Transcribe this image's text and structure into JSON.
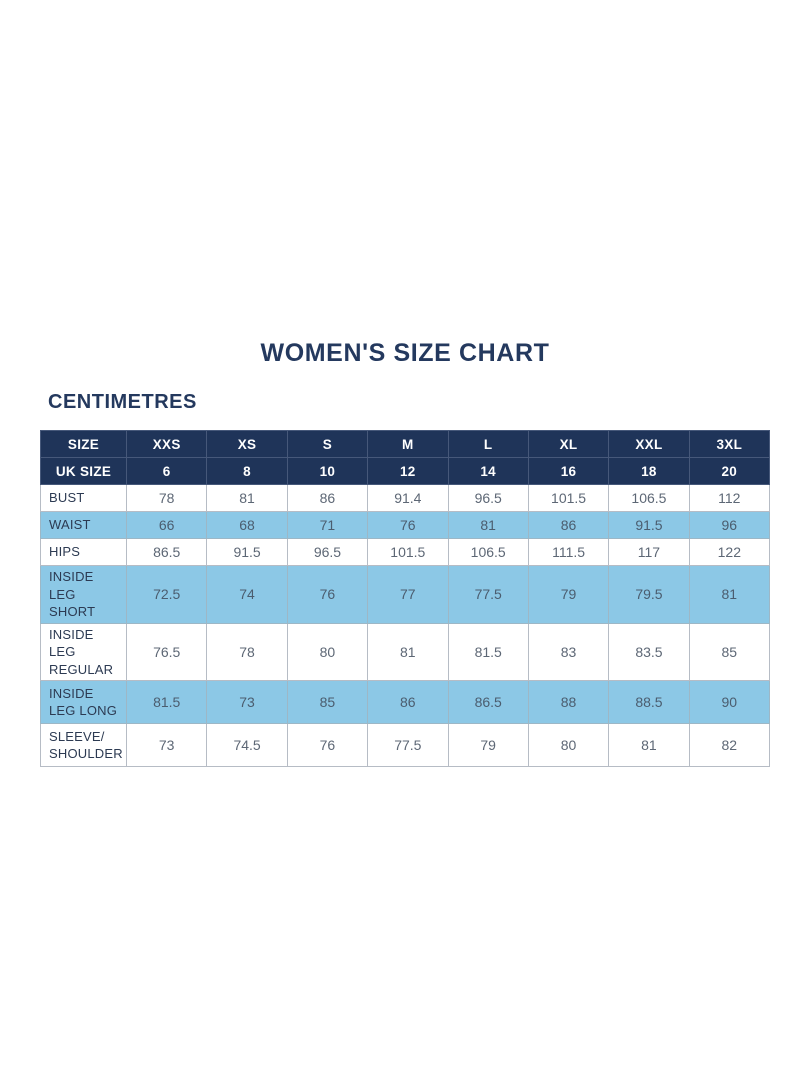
{
  "page": {
    "title": "WOMEN'S SIZE CHART",
    "unit_label": "CENTIMETRES"
  },
  "colors": {
    "navy_header": "#1f3459",
    "shaded_row_blue": "#8cc8e6",
    "title_text": "#24395e",
    "body_border": "#b6bcc5",
    "value_text": "#5d6775",
    "background": "#ffffff"
  },
  "chart_data": {
    "type": "table",
    "title": "WOMEN'S SIZE CHART",
    "unit": "CENTIMETRES",
    "columns": [
      "SIZE",
      "XXS",
      "XS",
      "S",
      "M",
      "L",
      "XL",
      "XXL",
      "3XL"
    ],
    "uk_size_row": {
      "label": "UK SIZE",
      "values": [
        "6",
        "8",
        "10",
        "12",
        "14",
        "16",
        "18",
        "20"
      ]
    },
    "rows": [
      {
        "label": "BUST",
        "values": [
          "78",
          "81",
          "86",
          "91.4",
          "96.5",
          "101.5",
          "106.5",
          "112"
        ],
        "shaded": false,
        "tall": false
      },
      {
        "label": "WAIST",
        "values": [
          "66",
          "68",
          "71",
          "76",
          "81",
          "86",
          "91.5",
          "96"
        ],
        "shaded": true,
        "tall": false
      },
      {
        "label": "HIPS",
        "values": [
          "86.5",
          "91.5",
          "96.5",
          "101.5",
          "106.5",
          "111.5",
          "117",
          "122"
        ],
        "shaded": false,
        "tall": false
      },
      {
        "label": "INSIDE LEG SHORT",
        "values": [
          "72.5",
          "74",
          "76",
          "77",
          "77.5",
          "79",
          "79.5",
          "81"
        ],
        "shaded": true,
        "tall": true
      },
      {
        "label": "INSIDE LEG REGULAR",
        "values": [
          "76.5",
          "78",
          "80",
          "81",
          "81.5",
          "83",
          "83.5",
          "85"
        ],
        "shaded": false,
        "tall": true
      },
      {
        "label": "INSIDE LEG LONG",
        "values": [
          "81.5",
          "73",
          "85",
          "86",
          "86.5",
          "88",
          "88.5",
          "90"
        ],
        "shaded": true,
        "tall": true
      },
      {
        "label": "SLEEVE/ SHOULDER",
        "values": [
          "73",
          "74.5",
          "76",
          "77.5",
          "79",
          "80",
          "81",
          "82"
        ],
        "shaded": false,
        "tall": true
      }
    ]
  }
}
